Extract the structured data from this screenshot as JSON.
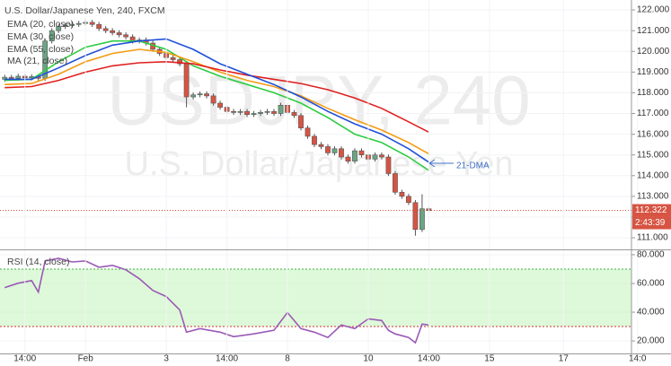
{
  "chart_data": [
    {
      "type": "candlestick",
      "title": "U.S. Dollar/Japanese Yen, 240, FXCM",
      "watermark": "USDJPY, 240",
      "watermark_subtitle": "U.S. Dollar/Japanese Yen",
      "up_color": "#6ba583",
      "down_color": "#d75442",
      "x": [
        0,
        1,
        2,
        3,
        4,
        5,
        6,
        7,
        8,
        9,
        10,
        11,
        12,
        13,
        14,
        15,
        16,
        17,
        18,
        19,
        20,
        21,
        22,
        23,
        24,
        25,
        26,
        27,
        28,
        29,
        30,
        31,
        32,
        33,
        34,
        35,
        36,
        37,
        38,
        39,
        40,
        41,
        42,
        43,
        44,
        45,
        46,
        47,
        48,
        49,
        50,
        51,
        52,
        53,
        54,
        55,
        56,
        57,
        58,
        59,
        60,
        61,
        62,
        63
      ],
      "open": [
        118.65,
        118.75,
        118.7,
        118.8,
        118.72,
        118.78,
        118.7,
        120.5,
        121.0,
        121.2,
        121.25,
        121.3,
        121.35,
        121.4,
        121.3,
        121.1,
        121.0,
        120.9,
        120.8,
        120.7,
        120.5,
        120.55,
        120.4,
        120.1,
        119.9,
        119.7,
        119.6,
        119.4,
        117.8,
        117.9,
        117.95,
        117.85,
        117.5,
        117.3,
        117.1,
        117.05,
        117.1,
        116.95,
        117.0,
        117.05,
        117.1,
        117.0,
        117.4,
        117.05,
        116.9,
        116.3,
        115.9,
        115.5,
        115.4,
        115.1,
        115.3,
        114.9,
        114.7,
        115.2,
        115.0,
        114.8,
        115.0,
        114.9,
        114.1,
        113.2,
        113.0,
        112.7,
        111.4,
        112.4
      ],
      "high": [
        118.87,
        118.87,
        118.92,
        118.92,
        118.9,
        118.9,
        120.62,
        121.12,
        121.32,
        121.37,
        121.42,
        121.47,
        121.55,
        121.52,
        121.42,
        121.22,
        121.12,
        121.02,
        120.92,
        120.82,
        120.67,
        120.67,
        120.52,
        120.22,
        120.02,
        119.82,
        119.72,
        119.52,
        118.02,
        118.07,
        118.07,
        117.97,
        117.62,
        117.42,
        117.22,
        117.22,
        117.22,
        117.12,
        117.17,
        117.22,
        117.22,
        117.52,
        117.52,
        117.17,
        117.02,
        116.42,
        116.02,
        115.62,
        115.52,
        115.42,
        115.42,
        115.02,
        115.32,
        115.32,
        115.12,
        115.12,
        115.12,
        115.02,
        114.22,
        113.32,
        113.12,
        112.82,
        113.1,
        112.52
      ],
      "low": [
        118.53,
        118.58,
        118.58,
        118.6,
        118.6,
        118.58,
        118.58,
        120.38,
        120.88,
        121.08,
        121.13,
        121.18,
        121.23,
        121.18,
        120.98,
        120.88,
        120.78,
        120.68,
        120.58,
        120.38,
        120.38,
        120.28,
        119.98,
        119.78,
        119.58,
        119.48,
        119.28,
        117.3,
        117.68,
        117.78,
        117.73,
        117.38,
        117.18,
        116.98,
        116.93,
        116.93,
        116.83,
        116.83,
        116.88,
        116.93,
        116.88,
        116.88,
        116.93,
        116.78,
        116.18,
        115.78,
        115.38,
        115.28,
        114.98,
        114.98,
        114.78,
        114.58,
        114.58,
        114.88,
        114.68,
        114.68,
        114.78,
        113.98,
        113.08,
        112.88,
        112.58,
        111.1,
        111.28,
        112.2
      ],
      "close": [
        118.75,
        118.7,
        118.8,
        118.72,
        118.78,
        118.7,
        120.5,
        121.0,
        121.2,
        121.25,
        121.3,
        121.35,
        121.4,
        121.3,
        121.1,
        121.0,
        120.9,
        120.8,
        120.7,
        120.5,
        120.55,
        120.4,
        120.1,
        119.9,
        119.7,
        119.6,
        119.4,
        117.8,
        117.9,
        117.95,
        117.85,
        117.5,
        117.3,
        117.1,
        117.05,
        117.1,
        116.95,
        117.0,
        117.05,
        117.1,
        117.0,
        117.4,
        117.05,
        116.9,
        116.3,
        115.9,
        115.5,
        115.4,
        115.1,
        115.3,
        114.9,
        114.7,
        115.2,
        115.0,
        114.8,
        115.0,
        114.9,
        114.1,
        113.2,
        113.0,
        112.7,
        111.4,
        112.4,
        112.32
      ],
      "series": [
        {
          "name": "EMA (20, close)",
          "color": "#2ecc40",
          "x": [
            0,
            4,
            8,
            12,
            16,
            20,
            24,
            28,
            32,
            36,
            40,
            44,
            48,
            52,
            56,
            60,
            63
          ],
          "values": [
            118.6,
            118.65,
            119.5,
            120.2,
            120.5,
            120.5,
            120.1,
            119.3,
            118.8,
            118.4,
            118.0,
            117.5,
            116.8,
            116.0,
            115.6,
            114.9,
            114.25
          ]
        },
        {
          "name": "EMA (30, close)",
          "color": "#f39c12",
          "x": [
            0,
            4,
            8,
            12,
            16,
            20,
            24,
            28,
            32,
            36,
            40,
            44,
            48,
            52,
            56,
            60,
            63
          ],
          "values": [
            118.4,
            118.45,
            118.9,
            119.5,
            119.9,
            120.1,
            119.95,
            119.5,
            119.0,
            118.6,
            118.3,
            117.85,
            117.25,
            116.7,
            116.2,
            115.6,
            115.05
          ]
        },
        {
          "name": "EMA (55, close)",
          "color": "#e02020",
          "x": [
            0,
            4,
            8,
            12,
            16,
            20,
            24,
            28,
            32,
            36,
            40,
            44,
            48,
            52,
            56,
            60,
            63
          ],
          "values": [
            118.25,
            118.3,
            118.6,
            119.0,
            119.3,
            119.45,
            119.5,
            119.4,
            119.1,
            118.85,
            118.65,
            118.45,
            118.15,
            117.75,
            117.25,
            116.6,
            116.1
          ]
        },
        {
          "name": "MA (21, close)",
          "color": "#2150d8",
          "x": [
            0,
            4,
            8,
            12,
            16,
            20,
            24,
            28,
            32,
            36,
            40,
            44,
            48,
            52,
            56,
            60,
            63
          ],
          "values": [
            118.65,
            118.65,
            119.2,
            119.8,
            120.3,
            120.5,
            120.6,
            120.1,
            119.4,
            118.9,
            118.4,
            117.8,
            117.1,
            116.5,
            116.0,
            115.3,
            114.65
          ]
        }
      ],
      "last_price": 112.322,
      "countdown": "2:43:39",
      "annotation": "21-DMA",
      "xlim": [
        -0.7,
        93.1
      ],
      "ylim": [
        110.44,
        122.48
      ],
      "yticks": [
        {
          "value": 111,
          "label": "111.000"
        },
        {
          "value": 112,
          "label": "112.000"
        },
        {
          "value": 113,
          "label": "113.000"
        },
        {
          "value": 114,
          "label": "114.000"
        },
        {
          "value": 115,
          "label": "115.000"
        },
        {
          "value": 116,
          "label": "116.000"
        },
        {
          "value": 117,
          "label": "117.000"
        },
        {
          "value": 118,
          "label": "118.000"
        },
        {
          "value": 119,
          "label": "119.000"
        },
        {
          "value": 120,
          "label": "120.000"
        },
        {
          "value": 121,
          "label": "121.000"
        },
        {
          "value": 122,
          "label": "122.000"
        }
      ],
      "grid": true
    },
    {
      "type": "line",
      "series": [
        {
          "name": "RSI (14, close)",
          "color": "#9b59b6",
          "x": [
            0,
            2,
            4,
            5,
            6,
            8,
            10,
            12,
            14,
            16,
            18,
            20,
            22,
            24,
            26,
            27,
            29,
            32,
            34,
            37,
            40,
            42,
            44,
            46,
            48,
            50,
            52,
            54,
            56,
            57,
            58,
            60,
            61,
            62,
            63
          ],
          "values": [
            57.1,
            60.2,
            62.0,
            54.0,
            75.7,
            77.5,
            75.0,
            75.7,
            71.3,
            72.6,
            69.5,
            63.3,
            55.2,
            50.9,
            41.6,
            26.1,
            28.6,
            26.1,
            23.0,
            24.9,
            27.4,
            39.8,
            28.6,
            26.1,
            22.4,
            31.1,
            28.6,
            35.4,
            34.2,
            27.4,
            24.9,
            22.4,
            18.7,
            31.7,
            31.1
          ]
        }
      ],
      "band": [
        30,
        70
      ],
      "band_color": "#c8f5c0",
      "xlim": [
        -0.7,
        93.1
      ],
      "xticks": [
        {
          "value": 3,
          "label": "14:00"
        },
        {
          "value": 12,
          "label": "Feb"
        },
        {
          "value": 24,
          "label": "3"
        },
        {
          "value": 33,
          "label": "14:00"
        },
        {
          "value": 42,
          "label": "8"
        },
        {
          "value": 54,
          "label": "10"
        },
        {
          "value": 63,
          "label": "14:00"
        },
        {
          "value": 72,
          "label": "15"
        },
        {
          "value": 83,
          "label": "17"
        },
        {
          "value": 94,
          "label": "14:0"
        }
      ],
      "ylim": [
        11.3,
        83.1
      ],
      "yticks": [
        {
          "value": 20,
          "label": "20.000"
        },
        {
          "value": 40,
          "label": "40.000"
        },
        {
          "value": 60,
          "label": "60.000"
        },
        {
          "value": 80,
          "label": "80.000"
        }
      ],
      "grid": true
    }
  ]
}
